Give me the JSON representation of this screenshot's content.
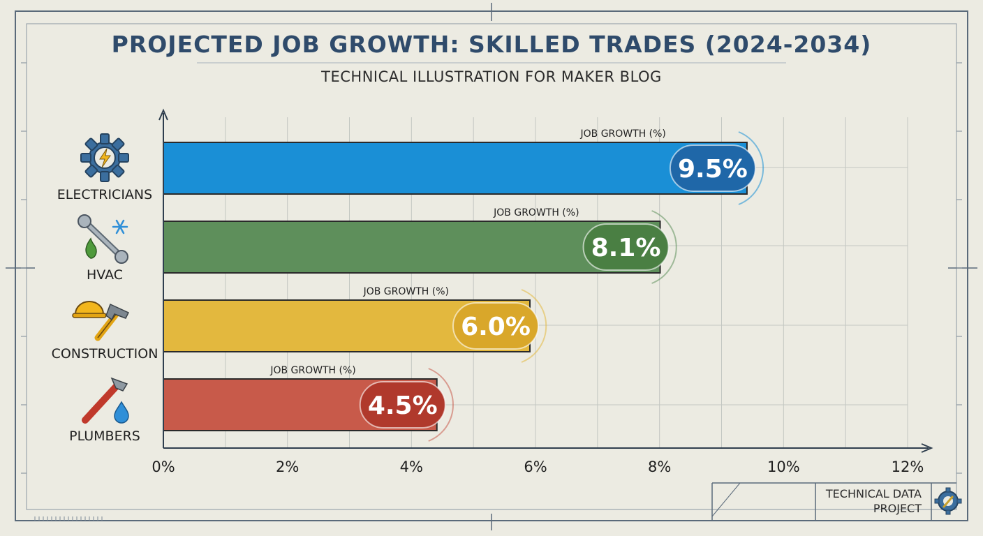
{
  "header": {
    "title": "PROJECTED JOB GROWTH: SKILLED TRADES (2024-2034)",
    "subtitle": "TECHNICAL ILLUSTRATION FOR MAKER BLOG"
  },
  "footer": {
    "line1": "TECHNICAL DATA",
    "line2": "PROJECT",
    "icon": "gear-wrench-icon"
  },
  "chart_data": {
    "type": "bar",
    "orientation": "horizontal",
    "title": "PROJECTED JOB GROWTH: SKILLED TRADES (2024-2034)",
    "subtitle": "TECHNICAL ILLUSTRATION FOR MAKER BLOG",
    "categories": [
      "ELECTRICIANS",
      "HVAC",
      "CONSTRUCTION",
      "PLUMBERS"
    ],
    "values": [
      9.5,
      8.1,
      6.0,
      4.5
    ],
    "value_labels": [
      "9.5%",
      "8.1%",
      "6.0%",
      "4.5%"
    ],
    "bar_caption": "JOB GROWTH (%)",
    "icons": [
      "gear-lightning-icon",
      "wrench-snowflake-flame-icon",
      "hardhat-hammer-icon",
      "pipe-wrench-drop-icon"
    ],
    "colors": [
      "#1a8fd6",
      "#5e8f5b",
      "#e3b83e",
      "#c85a4a"
    ],
    "badge_colors": [
      "#1f67a8",
      "#4a7f43",
      "#d9a72a",
      "#b0392c"
    ],
    "xlim": [
      0,
      12
    ],
    "xticks": [
      "0%",
      "2%",
      "4%",
      "6%",
      "8%",
      "10%",
      "12%"
    ],
    "xlabel": "",
    "ylabel": "",
    "grid": true,
    "legend": "none"
  }
}
